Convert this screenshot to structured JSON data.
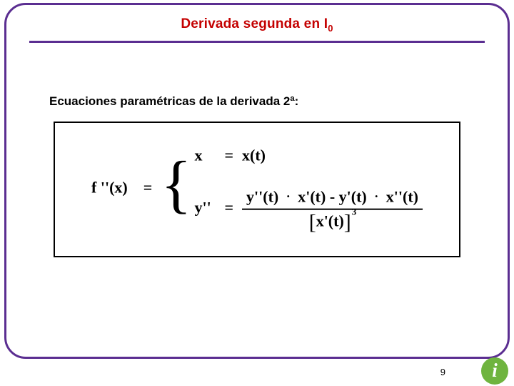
{
  "colors": {
    "frame_border": "#5b2e91",
    "title_color": "#c40000",
    "rule_color": "#5b2e91",
    "text_color": "#000000",
    "info_bg": "#6fb43f",
    "info_fg": "#ffffff",
    "page_bg": "#ffffff"
  },
  "title": {
    "prefix": "Derivada segunda en I",
    "sub": "0"
  },
  "subhead": "Ecuaciones paramétricas de la derivada 2ª:",
  "formula": {
    "lhs": "f ''(x)",
    "eq": "=",
    "case1": {
      "lhs": "x",
      "eq": "=",
      "rhs": "x(t)"
    },
    "case2": {
      "lhs": "y''",
      "eq": "=",
      "num_a": "y''(t)",
      "dot": "·",
      "num_b": "x'(t)",
      "minus": " - ",
      "num_c": "y'(t)",
      "num_d": "x''(t)",
      "den_inner": "x'(t)",
      "den_exp": "3",
      "lbr": "[",
      "rbr": "]"
    }
  },
  "page_number": "9",
  "info_glyph": "i"
}
